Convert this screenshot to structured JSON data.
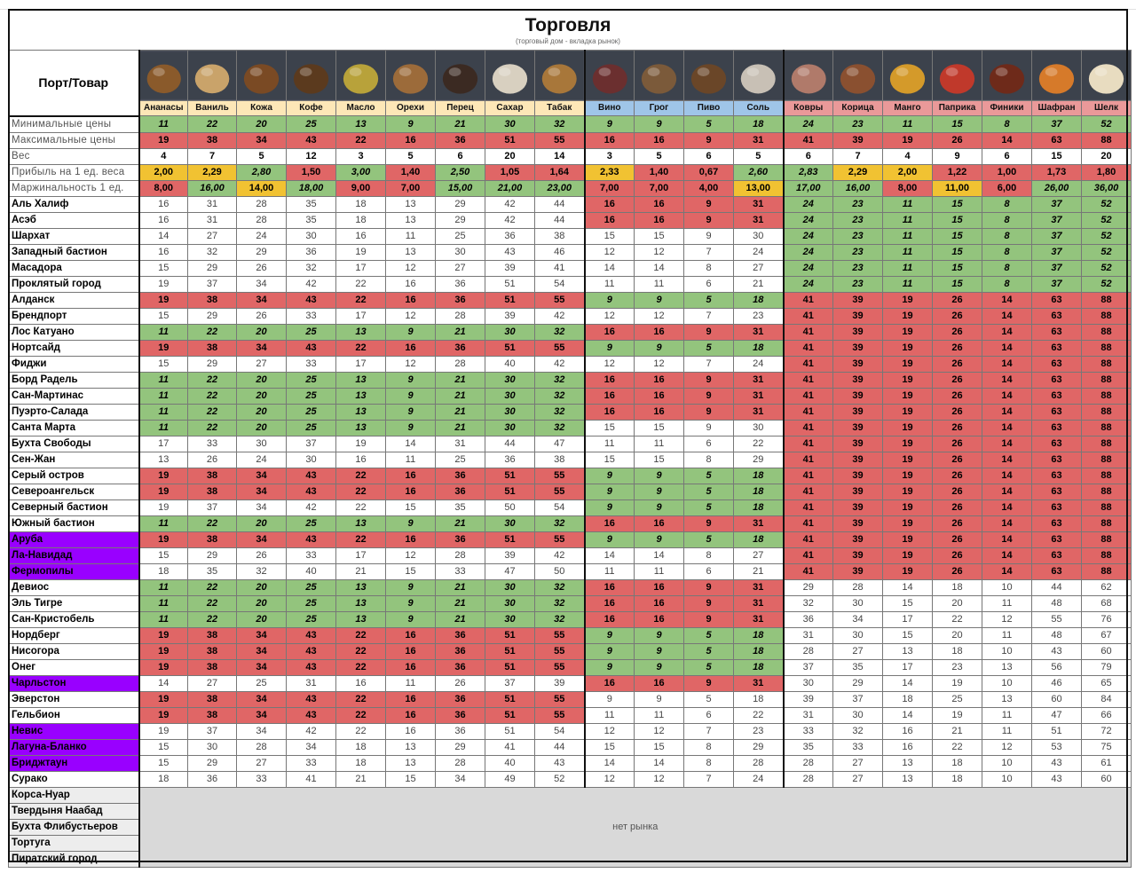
{
  "title": "Торговля",
  "subtitle": "(торговый дом - вкладка рынок)",
  "corner_label": "Порт/Товар",
  "no_market_label": "нет рынка",
  "colors": {
    "green": "#93c47d",
    "red": "#e06666",
    "yellow": "#f1c232",
    "purple": "#9900ff",
    "gray": "#d9d9d9"
  },
  "goods": [
    {
      "name": "Ананасы",
      "icon": "pineapple-crate-icon"
    },
    {
      "name": "Ваниль",
      "icon": "vanilla-sack-icon"
    },
    {
      "name": "Кожа",
      "icon": "leather-roll-icon"
    },
    {
      "name": "Кофе",
      "icon": "coffee-sack-icon"
    },
    {
      "name": "Масло",
      "icon": "oil-bottle-icon"
    },
    {
      "name": "Орехи",
      "icon": "nuts-sack-icon"
    },
    {
      "name": "Перец",
      "icon": "pepper-bowl-icon"
    },
    {
      "name": "Сахар",
      "icon": "sugar-sack-icon"
    },
    {
      "name": "Табак",
      "icon": "tobacco-pipe-icon"
    },
    {
      "name": "Вино",
      "icon": "wine-bottle-icon"
    },
    {
      "name": "Грог",
      "icon": "grog-cask-icon"
    },
    {
      "name": "Пиво",
      "icon": "beer-barrel-icon"
    },
    {
      "name": "Соль",
      "icon": "salt-sack-icon"
    },
    {
      "name": "Ковры",
      "icon": "carpet-roll-icon"
    },
    {
      "name": "Корица",
      "icon": "cinnamon-sticks-icon"
    },
    {
      "name": "Манго",
      "icon": "mango-crate-icon"
    },
    {
      "name": "Паприка",
      "icon": "paprika-jar-icon"
    },
    {
      "name": "Финики",
      "icon": "dates-bowl-icon"
    },
    {
      "name": "Шафран",
      "icon": "saffron-bowl-icon"
    },
    {
      "name": "Шелк",
      "icon": "silk-scroll-icon"
    }
  ],
  "metrics": [
    {
      "label": "Минимальные цены",
      "values": [
        "11",
        "22",
        "20",
        "25",
        "13",
        "9",
        "21",
        "30",
        "32",
        "9",
        "9",
        "5",
        "18",
        "24",
        "23",
        "11",
        "15",
        "8",
        "37",
        "52"
      ],
      "style": "g"
    },
    {
      "label": "Максимальные цены",
      "values": [
        "19",
        "38",
        "34",
        "43",
        "22",
        "16",
        "36",
        "51",
        "55",
        "16",
        "16",
        "9",
        "31",
        "41",
        "39",
        "19",
        "26",
        "14",
        "63",
        "88"
      ],
      "style": "r"
    },
    {
      "label": "Вес",
      "values": [
        "4",
        "7",
        "5",
        "12",
        "3",
        "5",
        "6",
        "20",
        "14",
        "3",
        "5",
        "6",
        "5",
        "6",
        "7",
        "4",
        "9",
        "6",
        "15",
        "20"
      ],
      "style": "b"
    },
    {
      "label": "Прибыль на 1 ед. веса",
      "values": [
        "2,00",
        "2,29",
        "2,80",
        "1,50",
        "3,00",
        "1,40",
        "2,50",
        "1,05",
        "1,64",
        "2,33",
        "1,40",
        "0,67",
        "2,60",
        "2,83",
        "2,29",
        "2,00",
        "1,22",
        "1,00",
        "1,73",
        "1,80"
      ],
      "style": "profit"
    },
    {
      "label": "Маржинальность 1 ед.",
      "values": [
        "8,00",
        "16,00",
        "14,00",
        "18,00",
        "9,00",
        "7,00",
        "15,00",
        "21,00",
        "23,00",
        "7,00",
        "7,00",
        "4,00",
        "13,00",
        "17,00",
        "16,00",
        "8,00",
        "11,00",
        "6,00",
        "26,00",
        "36,00"
      ],
      "style": "margin"
    }
  ],
  "ports": [
    {
      "name": "Аль Халиф",
      "A": "p:16 31 28 35 18 13 29 42 44",
      "B": "r",
      "C": "g"
    },
    {
      "name": "Асэб",
      "A": "p:16 31 28 35 18 13 29 42 44",
      "B": "r",
      "C": "g"
    },
    {
      "name": "Шархат",
      "A": "p:14 27 24 30 16 11 25 36 38",
      "B": "p:15 15 9 30",
      "C": "g"
    },
    {
      "name": "Западный бастион",
      "A": "p:16 32 29 36 19 13 30 43 46",
      "B": "p:12 12 7 24",
      "C": "g"
    },
    {
      "name": "Масадора",
      "A": "p:15 29 26 32 17 12 27 39 41",
      "B": "p:14 14 8 27",
      "C": "g"
    },
    {
      "name": "Проклятый город",
      "A": "p:19 37 34 42 22 16 36 51 54",
      "B": "p:11 11 6 21",
      "C": "g"
    },
    {
      "name": "Алданск",
      "A": "r",
      "B": "g",
      "C": "r"
    },
    {
      "name": "Брендпорт",
      "A": "p:15 29 26 33 17 12 28 39 42",
      "B": "p:12 12 7 23",
      "C": "r"
    },
    {
      "name": "Лос Катуано",
      "A": "g",
      "B": "r",
      "C": "r"
    },
    {
      "name": "Нортсайд",
      "A": "r",
      "B": "g",
      "C": "r"
    },
    {
      "name": "Фиджи",
      "A": "p:15 29 27 33 17 12 28 40 42",
      "B": "p:12 12 7 24",
      "C": "r"
    },
    {
      "name": "Борд Радель",
      "A": "g",
      "B": "r",
      "C": "r"
    },
    {
      "name": "Сан-Мартинас",
      "A": "g",
      "B": "r",
      "C": "r"
    },
    {
      "name": "Пуэрто-Салада",
      "A": "g",
      "B": "r",
      "C": "r"
    },
    {
      "name": "Санта Марта",
      "A": "g",
      "B": "p:15 15 9 30",
      "C": "r"
    },
    {
      "name": "Бухта Свободы",
      "A": "p:17 33 30 37 19 14 31 44 47",
      "B": "p:11 11 6 22",
      "C": "r"
    },
    {
      "name": "Сен-Жан",
      "A": "p:13 26 24 30 16 11 25 36 38",
      "B": "p:15 15 8 29",
      "C": "r"
    },
    {
      "name": "Серый остров",
      "A": "r",
      "B": "g",
      "C": "r"
    },
    {
      "name": "Североангельск",
      "A": "r",
      "B": "g",
      "C": "r"
    },
    {
      "name": "Северный бастион",
      "A": "p:19 37 34 42 22 15 35 50 54",
      "B": "g",
      "C": "r"
    },
    {
      "name": "Южный бастион",
      "A": "g",
      "B": "r",
      "C": "r"
    },
    {
      "name": "Аруба",
      "purple": true,
      "A": "r",
      "B": "g",
      "C": "r"
    },
    {
      "name": "Ла-Навидад",
      "purple": true,
      "A": "p:15 29 26 33 17 12 28 39 42",
      "B": "p:14 14 8 27",
      "C": "r"
    },
    {
      "name": "Фермопилы",
      "purple": true,
      "A": "p:18 35 32 40 21 15 33 47 50",
      "B": "p:11 11 6 21",
      "C": "r"
    },
    {
      "name": "Девиос",
      "A": "g",
      "B": "r",
      "C": "p:29 28 14 18 10 44 62"
    },
    {
      "name": "Эль Тигре",
      "A": "g",
      "B": "r",
      "C": "p:32 30 15 20 11 48 68"
    },
    {
      "name": "Сан-Кристобель",
      "A": "g",
      "B": "r",
      "C": "p:36 34 17 22 12 55 76"
    },
    {
      "name": "Нордберг",
      "A": "r",
      "B": "g",
      "C": "p:31 30 15 20 11 48 67"
    },
    {
      "name": "Нисогора",
      "A": "r",
      "B": "g",
      "C": "p:28 27 13 18 10 43 60"
    },
    {
      "name": "Онег",
      "A": "r",
      "B": "g",
      "C": "p:37 35 17 23 13 56 79"
    },
    {
      "name": "Чарльстон",
      "purple": true,
      "A": "p:14 27 25 31 16 11 26 37 39",
      "B": "r",
      "C": "p:30 29 14 19 10 46 65"
    },
    {
      "name": "Эверстон",
      "A": "r",
      "B": "p:9 9 5 18",
      "C": "p:39 37 18 25 13 60 84"
    },
    {
      "name": "Гельбион",
      "A": "r",
      "B": "p:11 11 6 22",
      "C": "p:31 30 14 19 11 47 66"
    },
    {
      "name": "Невис",
      "purple": true,
      "A": "p:19 37 34 42 22 16 36 51 54",
      "B": "p:12 12 7 23",
      "C": "p:33 32 16 21 11 51 72"
    },
    {
      "name": "Лагуна-Бланко",
      "purple": true,
      "A": "p:15 30 28 34 18 13 29 41 44",
      "B": "p:15 15 8 29",
      "C": "p:35 33 16 22 12 53 75"
    },
    {
      "name": "Бриджтаун",
      "purple": true,
      "A": "p:15 29 27 33 18 13 28 40 43",
      "B": "p:14 14 8 28",
      "C": "p:28 27 13 18 10 43 61"
    },
    {
      "name": "Сурако",
      "A": "p:18 36 33 41 21 15 34 49 52",
      "B": "p:12 12 7 24",
      "C": "p:28 27 13 18 10 43 60"
    }
  ],
  "no_market_ports": [
    "Корса-Нуар",
    "Твердыня Наабад",
    "Бухта Флибустьеров",
    "Тортуга",
    "Пиратский город"
  ]
}
